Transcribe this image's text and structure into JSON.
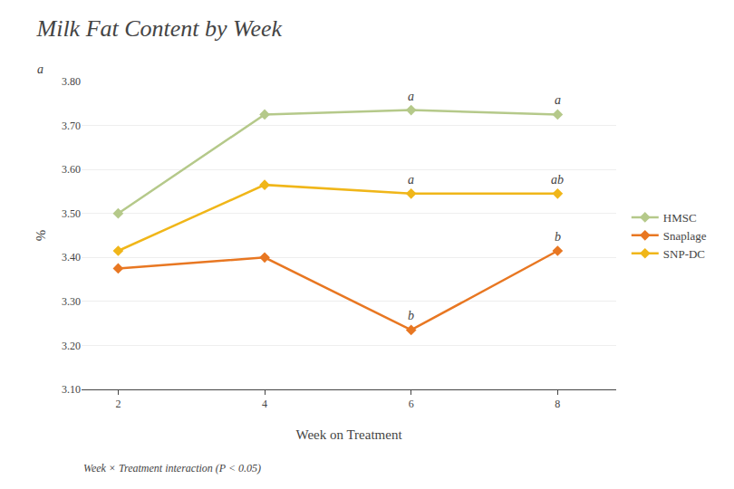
{
  "chart_data": {
    "type": "line",
    "title": "Milk Fat Content by Week",
    "subtitle": "Week × Treatment interaction (P < 0.05)",
    "xlabel": "Week on Treatment",
    "ylabel": "%",
    "annotations": [
      "a"
    ],
    "x": [
      2,
      4,
      6,
      8
    ],
    "xlim": [
      1.5,
      8.8
    ],
    "xticks": [
      2,
      4,
      6,
      8
    ],
    "ylim": [
      3.1,
      3.8
    ],
    "yticks": [
      {
        "value": 3.1,
        "label": "3.10"
      },
      {
        "value": 3.2,
        "label": "3.20"
      },
      {
        "value": 3.3,
        "label": "3.30"
      },
      {
        "value": 3.4,
        "label": "3.40"
      },
      {
        "value": 3.5,
        "label": "3.50"
      },
      {
        "value": 3.6,
        "label": "3.60"
      },
      {
        "value": 3.7,
        "label": "3.70"
      },
      {
        "value": 3.8,
        "label": "3.80"
      }
    ],
    "grid": true,
    "legend": "right",
    "marker": "diamond",
    "series": [
      {
        "name": "HMSC",
        "color": "#b5c98a",
        "values": [
          3.5,
          3.725,
          3.735,
          3.725
        ],
        "annotations": [
          null,
          null,
          "a",
          "a"
        ]
      },
      {
        "name": "Snaplage",
        "color": "#e87722",
        "values": [
          3.375,
          3.4,
          3.235,
          3.415
        ],
        "annotations": [
          null,
          null,
          "b",
          "b"
        ]
      },
      {
        "name": "SNP-DC",
        "color": "#f0b619",
        "values": [
          3.415,
          3.565,
          3.545,
          3.545
        ],
        "annotations": [
          null,
          null,
          "a",
          "ab"
        ]
      }
    ]
  }
}
